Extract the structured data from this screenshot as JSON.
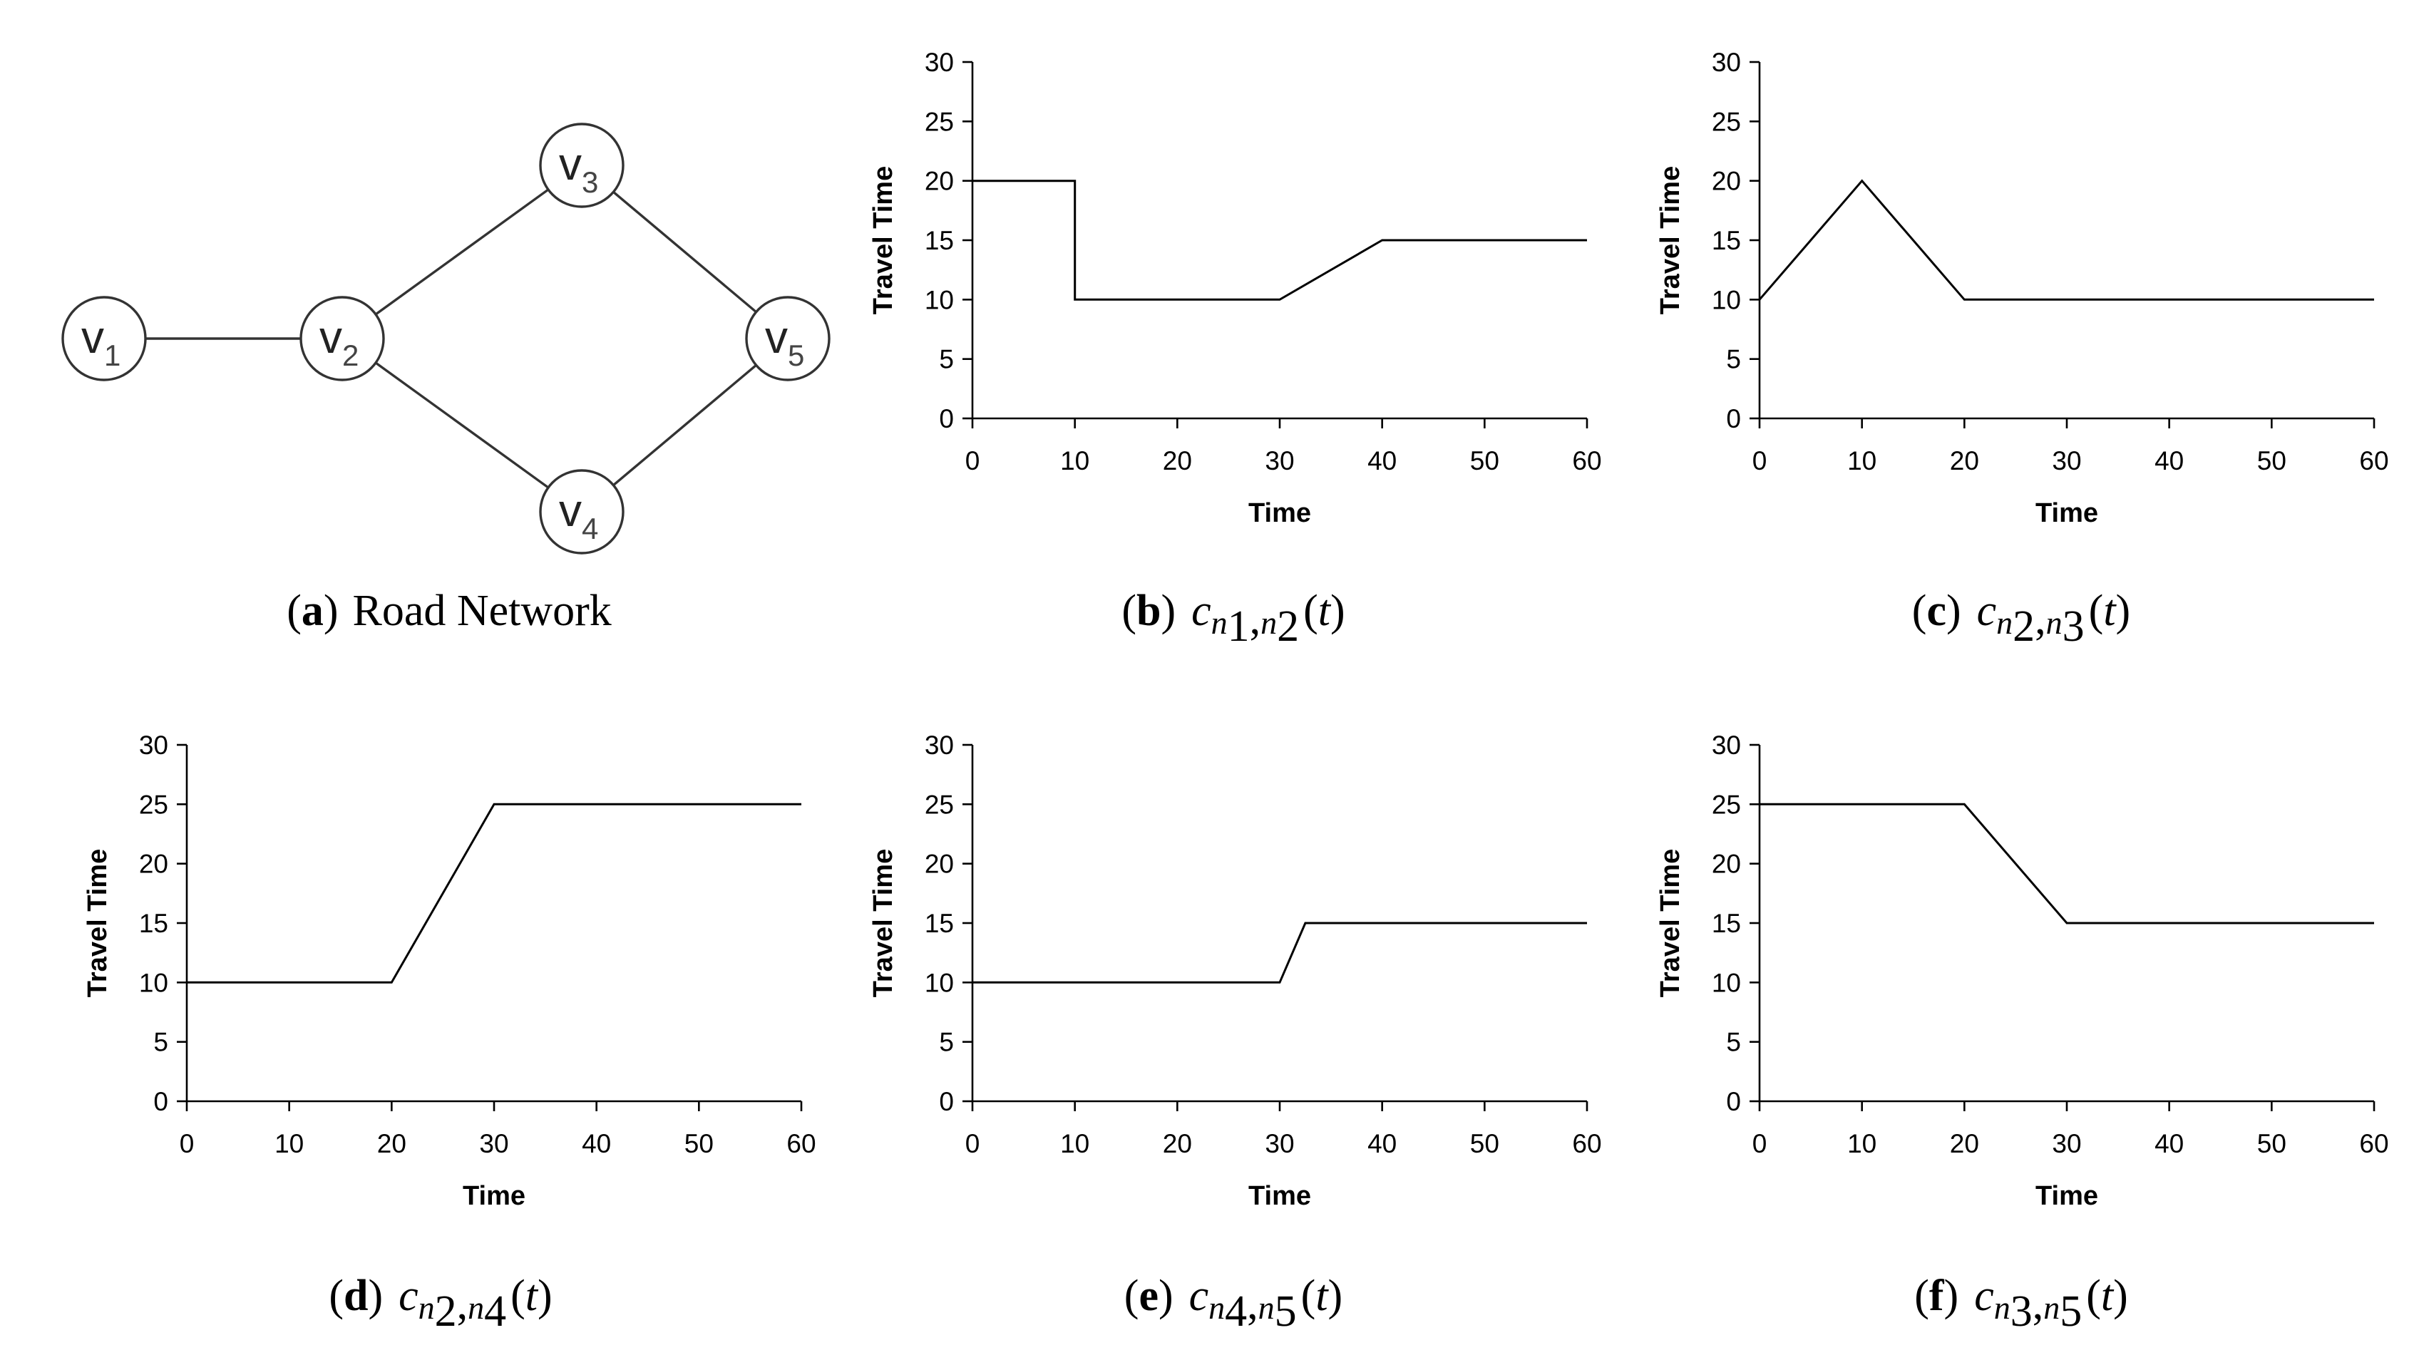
{
  "figure": {
    "panel_a": {
      "caption_letter": "a",
      "caption_text": "Road Network",
      "nodes": [
        {
          "id": "v1",
          "letter": "v",
          "sub": "1"
        },
        {
          "id": "v2",
          "letter": "v",
          "sub": "2"
        },
        {
          "id": "v3",
          "letter": "v",
          "sub": "3"
        },
        {
          "id": "v4",
          "letter": "v",
          "sub": "4"
        },
        {
          "id": "v5",
          "letter": "v",
          "sub": "5"
        }
      ],
      "edges": [
        [
          "v1",
          "v2"
        ],
        [
          "v2",
          "v3"
        ],
        [
          "v2",
          "v4"
        ],
        [
          "v3",
          "v5"
        ],
        [
          "v4",
          "v5"
        ]
      ]
    },
    "captions": [
      {
        "panel": "b",
        "letter": "b",
        "func": "c",
        "a": "n",
        "a_sub": "1",
        "b": "n",
        "b_sub": "2",
        "arg": "t"
      },
      {
        "panel": "c",
        "letter": "c",
        "func": "c",
        "a": "n",
        "a_sub": "2",
        "b": "n",
        "b_sub": "3",
        "arg": "t"
      },
      {
        "panel": "d",
        "letter": "d",
        "func": "c",
        "a": "n",
        "a_sub": "2",
        "b": "n",
        "b_sub": "4",
        "arg": "t"
      },
      {
        "panel": "e",
        "letter": "e",
        "func": "c",
        "a": "n",
        "a_sub": "4",
        "b": "n",
        "b_sub": "5",
        "arg": "t"
      },
      {
        "panel": "f",
        "letter": "f",
        "func": "c",
        "a": "n",
        "a_sub": "3",
        "b": "n",
        "b_sub": "5",
        "arg": "t"
      }
    ]
  },
  "chart_data": [
    {
      "panel": "b",
      "type": "line",
      "xlabel": "Time",
      "ylabel": "Travel Time",
      "xlim": [
        0,
        60
      ],
      "ylim": [
        0,
        30
      ],
      "xticks": [
        0,
        10,
        20,
        30,
        40,
        50,
        60
      ],
      "yticks": [
        0,
        5,
        10,
        15,
        20,
        25,
        30
      ],
      "x": [
        0,
        10,
        10,
        30,
        40,
        60
      ],
      "y": [
        20,
        20,
        10,
        10,
        15,
        15
      ]
    },
    {
      "panel": "c",
      "type": "line",
      "xlabel": "Time",
      "ylabel": "Travel Time",
      "xlim": [
        0,
        60
      ],
      "ylim": [
        0,
        30
      ],
      "xticks": [
        0,
        10,
        20,
        30,
        40,
        50,
        60
      ],
      "yticks": [
        0,
        5,
        10,
        15,
        20,
        25,
        30
      ],
      "x": [
        0,
        10,
        20,
        60
      ],
      "y": [
        10,
        20,
        10,
        10
      ]
    },
    {
      "panel": "d",
      "type": "line",
      "xlabel": "Time",
      "ylabel": "Travel Time",
      "xlim": [
        0,
        60
      ],
      "ylim": [
        0,
        30
      ],
      "xticks": [
        0,
        10,
        20,
        30,
        40,
        50,
        60
      ],
      "yticks": [
        0,
        5,
        10,
        15,
        20,
        25,
        30
      ],
      "x": [
        0,
        20,
        30,
        60
      ],
      "y": [
        10,
        10,
        25,
        25
      ]
    },
    {
      "panel": "e",
      "type": "line",
      "xlabel": "Time",
      "ylabel": "Travel Time",
      "xlim": [
        0,
        60
      ],
      "ylim": [
        0,
        30
      ],
      "xticks": [
        0,
        10,
        20,
        30,
        40,
        50,
        60
      ],
      "yticks": [
        0,
        5,
        10,
        15,
        20,
        25,
        30
      ],
      "x": [
        0,
        30,
        32.5,
        60
      ],
      "y": [
        10,
        10,
        15,
        15
      ]
    },
    {
      "panel": "f",
      "type": "line",
      "xlabel": "Time",
      "ylabel": "Travel Time",
      "xlim": [
        0,
        60
      ],
      "ylim": [
        0,
        30
      ],
      "xticks": [
        0,
        10,
        20,
        30,
        40,
        50,
        60
      ],
      "yticks": [
        0,
        5,
        10,
        15,
        20,
        25,
        30
      ],
      "x": [
        0,
        20,
        30,
        60
      ],
      "y": [
        25,
        25,
        15,
        15
      ]
    }
  ]
}
